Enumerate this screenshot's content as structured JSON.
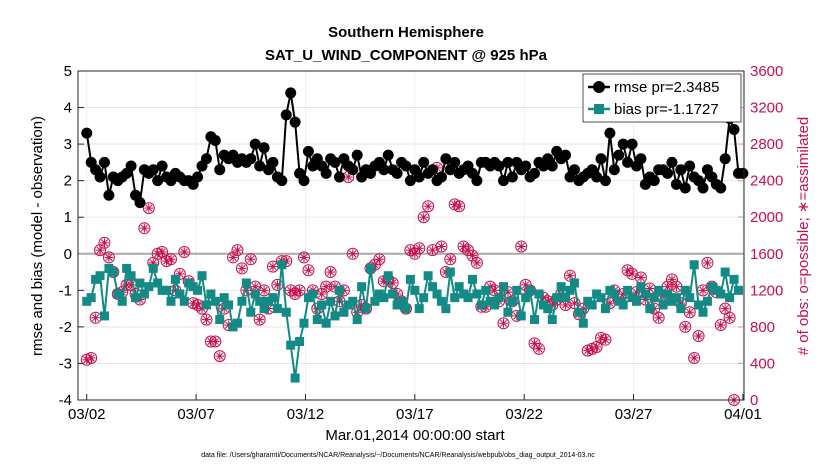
{
  "chart_data": {
    "type": "line",
    "title": "Southern Hemisphere",
    "subtitle": "SAT_U_WIND_COMPONENT @ 925 hPa",
    "xlabel": "Mar.01,2014 00:00:00 start",
    "ylabel_left": "rmse and bias (model - observation)",
    "ylabel_right": "# of obs: o=possible; ∗=assimilated",
    "footnote": "data file: /Users/gharamti/Documents/NCAR/Reanalysis/~/Documents/NCAR/Reanalysis/webpub/obs_diag_output_2014-03.nc",
    "x_ticks": [
      "03/02",
      "03/07",
      "03/12",
      "03/17",
      "03/22",
      "03/27",
      "04/01"
    ],
    "x_tick_days": [
      1,
      6,
      11,
      16,
      21,
      26,
      31
    ],
    "xlim_days": [
      0.6,
      31.05
    ],
    "ylim_left": [
      -4,
      5
    ],
    "yticks_left": [
      "-4",
      "-3",
      "-2",
      "-1",
      "0",
      "1",
      "2",
      "3",
      "4",
      "5"
    ],
    "ylim_right": [
      0,
      3600
    ],
    "yticks_right": [
      "0",
      "400",
      "800",
      "1200",
      "1600",
      "2000",
      "2400",
      "2800",
      "3200",
      "3600"
    ],
    "grid": true,
    "legend_position": "top-right",
    "series": [
      {
        "name": "rmse pr=2.3485",
        "axis": "left",
        "color": "#000000",
        "values": [
          3.3,
          2.5,
          2.3,
          2.1,
          2.5,
          1.6,
          2.1,
          2.0,
          2.1,
          2.2,
          2.4,
          1.6,
          1.4,
          2.3,
          2.2,
          2.3,
          2.0,
          2.4,
          2.1,
          2.0,
          2.2,
          2.1,
          2.0,
          2.0,
          1.9,
          2.1,
          2.4,
          2.6,
          3.2,
          3.1,
          2.3,
          2.7,
          2.6,
          2.7,
          2.5,
          2.6,
          2.5,
          2.6,
          3.0,
          2.4,
          2.9,
          2.3,
          2.5,
          2.1,
          2.0,
          3.8,
          4.4,
          3.6,
          2.2,
          2.0,
          2.8,
          2.4,
          2.6,
          2.4,
          2.2,
          2.6,
          2.5,
          2.1,
          2.6,
          2.4,
          2.3,
          2.7,
          2.1,
          2.3,
          2.2,
          2.4,
          2.5,
          2.3,
          2.7,
          2.3,
          2.2,
          2.5,
          2.4,
          2.0,
          2.3,
          2.1,
          2.5,
          2.2,
          2.3,
          2.0,
          2.1,
          2.6,
          2.3,
          2.5,
          2.2,
          2.3,
          2.4,
          2.2,
          2.0,
          2.5,
          2.5,
          2.4,
          2.5,
          2.4,
          2.0,
          2.5,
          2.1,
          2.5,
          2.3,
          2.4,
          2.1,
          2.2,
          2.5,
          2.4,
          2.6,
          2.4,
          2.8,
          2.6,
          2.7,
          2.1,
          2.3,
          2.0,
          2.1,
          2.2,
          2.3,
          2.1,
          2.6,
          2.0,
          3.3,
          2.3,
          2.7,
          3.0,
          2.5,
          3.0,
          2.4,
          2.6,
          1.9,
          2.1,
          2.0,
          2.3,
          2.3,
          2.2,
          2.5,
          1.9,
          2.3,
          1.8,
          2.4,
          2.1,
          2.0,
          1.8,
          2.3,
          2.1,
          1.9,
          1.8,
          2.6,
          3.7,
          3.4,
          2.2,
          2.2
        ]
      },
      {
        "name": "bias pr=-1.1727",
        "axis": "left",
        "color": "#138a85",
        "values": [
          -1.3,
          -1.2,
          -0.7,
          -0.6,
          -1.7,
          -0.4,
          -0.5,
          -1.1,
          -1.3,
          -0.4,
          -0.6,
          -1.2,
          -0.8,
          -1.1,
          -0.9,
          -0.4,
          -0.8,
          -1.0,
          -1.0,
          -1.3,
          -0.7,
          -1.1,
          -1.3,
          -0.8,
          -0.9,
          -1.0,
          -0.6,
          -1.4,
          -1.1,
          -1.3,
          -1.8,
          -1.2,
          -1.4,
          -2.0,
          -1.9,
          -1.3,
          -0.8,
          -1.6,
          -1.1,
          -1.3,
          -1.5,
          -1.3,
          -1.2,
          -1.5,
          -0.3,
          -1.6,
          -2.5,
          -3.4,
          -2.4,
          -1.9,
          -1.2,
          -1.1,
          -1.8,
          -1.4,
          -1.9,
          -1.3,
          -1.7,
          -1.0,
          -1.6,
          -1.4,
          -1.3,
          -1.8,
          -0.9,
          -1.5,
          -0.4,
          -1.3,
          -1.1,
          -1.2,
          -0.6,
          -1.1,
          -1.4,
          -1.3,
          -1.5,
          -0.7,
          -1.0,
          -1.5,
          -1.2,
          -0.6,
          -0.9,
          -1.1,
          -1.3,
          -1.5,
          -0.5,
          -1.2,
          -0.9,
          -1.1,
          -1.2,
          -0.7,
          -1.1,
          -1.4,
          -1.0,
          -1.3,
          -1.4,
          -1.2,
          -0.9,
          -1.6,
          -1.3,
          -1.0,
          -1.7,
          -1.2,
          -1.0,
          -1.8,
          -1.1,
          -1.4,
          -1.5,
          -1.8,
          -1.2,
          -0.9,
          -1.2,
          -1.0,
          -0.8,
          -1.6,
          -1.9,
          -1.3,
          -1.4,
          -1.1,
          -1.2,
          -1.5,
          -1.0,
          -1.1,
          -1.3,
          -1.4,
          -1.0,
          -1.2,
          -1.3,
          -0.9,
          -1.1,
          -1.5,
          -1.2,
          -1.0,
          -1.4,
          -1.1,
          -1.3,
          -1.2,
          -1.5,
          -1.0,
          -1.2,
          -0.3,
          -1.4,
          -1.6,
          -1.3,
          -0.9,
          -1.0,
          -1.1,
          -0.5,
          -1.2,
          -0.7,
          -1.0
        ]
      },
      {
        "name": "possible obs",
        "axis": "right",
        "marker": "o",
        "color": "#c8104a",
        "values": [
          440,
          460,
          900,
          1640,
          1720,
          1560,
          1400,
          1160,
          1180,
          1260,
          1260,
          1160,
          1100,
          1880,
          2100,
          1500,
          1600,
          1620,
          1520,
          1540,
          1200,
          1380,
          1620,
          1300,
          1060,
          1040,
          1000,
          880,
          640,
          640,
          480,
          1000,
          820,
          1560,
          1640,
          1440,
          1200,
          1540,
          1240,
          880,
          1200,
          1000,
          1460,
          1260,
          1520,
          1520,
          1200,
          1160,
          1200,
          1560,
          1420,
          1200,
          1000,
          1160,
          1240,
          1400,
          1240,
          1080,
          1200,
          2440,
          1600,
          960,
          1040,
          1000,
          1440,
          1480,
          1540,
          1300,
          1320,
          1280,
          1160,
          1080,
          1000,
          1640,
          1600,
          1660,
          2000,
          2120,
          1640,
          2540,
          1680,
          1400,
          1540,
          2140,
          2120,
          1680,
          1640,
          1580,
          1500,
          1020,
          1020,
          1240,
          1200,
          1080,
          840,
          1180,
          1080,
          920,
          1680,
          1260,
          1200,
          620,
          560,
          1120,
          1080,
          1040,
          1100,
          1160,
          1040,
          1360,
          1060,
          940,
          1000,
          540,
          560,
          580,
          680,
          660,
          1060,
          1200,
          1100,
          1160,
          1420,
          1380,
          1180,
          1340,
          1100,
          1220,
          1000,
          900,
          1140,
          1240,
          1320,
          1240,
          1060,
          800,
          960,
          460,
          700,
          1200,
          1500,
          1240,
          1180,
          820,
          1000,
          900,
          0
        ]
      },
      {
        "name": "assimilated obs",
        "axis": "right",
        "marker": "*",
        "color": "#c8104a",
        "values": [
          440,
          460,
          900,
          1640,
          1720,
          1560,
          1400,
          1160,
          1180,
          1260,
          1260,
          1160,
          1100,
          1880,
          2100,
          1500,
          1600,
          1620,
          1520,
          1540,
          1200,
          1380,
          1620,
          1300,
          1060,
          1040,
          1000,
          880,
          640,
          640,
          480,
          1000,
          820,
          1560,
          1640,
          1440,
          1200,
          1540,
          1240,
          880,
          1200,
          1000,
          1460,
          1260,
          1520,
          1520,
          1200,
          1160,
          1200,
          1560,
          1420,
          1200,
          1000,
          1160,
          1240,
          1400,
          1240,
          1080,
          1200,
          2440,
          1600,
          960,
          1040,
          1000,
          1440,
          1480,
          1540,
          1300,
          1320,
          1280,
          1160,
          1080,
          1000,
          1640,
          1600,
          1660,
          2000,
          2120,
          1640,
          2540,
          1680,
          1400,
          1540,
          2140,
          2120,
          1680,
          1640,
          1580,
          1500,
          1020,
          1020,
          1240,
          1200,
          1080,
          840,
          1180,
          1080,
          920,
          1680,
          1260,
          1200,
          620,
          560,
          1120,
          1080,
          1040,
          1100,
          1160,
          1040,
          1360,
          1060,
          940,
          1000,
          540,
          560,
          580,
          680,
          660,
          1060,
          1200,
          1100,
          1160,
          1420,
          1380,
          1180,
          1340,
          1100,
          1220,
          1000,
          900,
          1140,
          1240,
          1320,
          1240,
          1060,
          800,
          960,
          460,
          700,
          1200,
          1500,
          1240,
          1180,
          820,
          1000,
          900,
          0
        ]
      }
    ]
  }
}
